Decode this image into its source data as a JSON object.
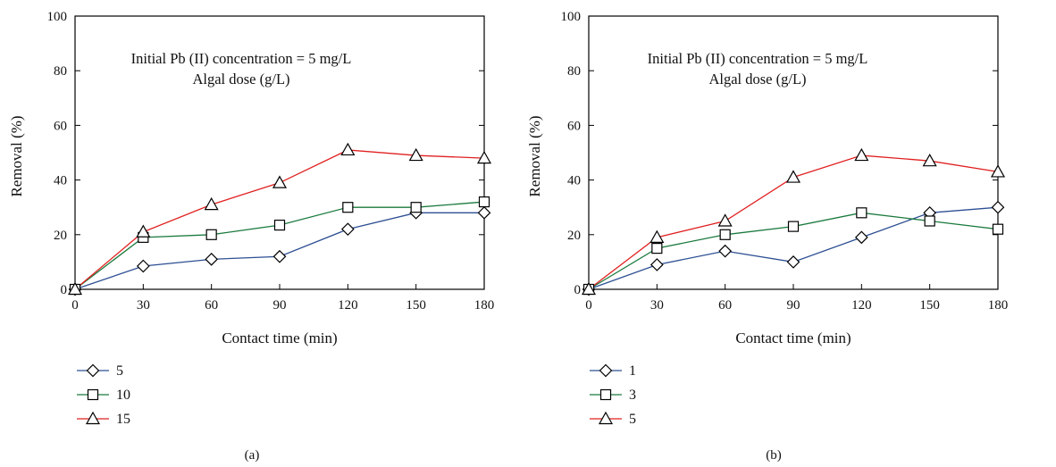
{
  "figure": {
    "colors": {
      "axis": "#000000",
      "marker_fill": "#ffffff",
      "marker_stroke": "#000000"
    }
  },
  "chart_data": [
    {
      "type": "line",
      "panel": "(a)",
      "annotation": [
        "Initial Pb (II) concentration = 5 mg/L",
        "Algal dose (g/L)"
      ],
      "xlabel": "Contact time (min)",
      "ylabel": "Removal (%)",
      "xlim": [
        0,
        180
      ],
      "ylim": [
        0,
        100
      ],
      "xticks": [
        0,
        30,
        60,
        90,
        120,
        150,
        180
      ],
      "yticks": [
        0,
        20,
        40,
        60,
        80,
        100
      ],
      "grid": false,
      "legend_position": "below-left",
      "x": [
        0,
        30,
        60,
        90,
        120,
        150,
        180
      ],
      "series": [
        {
          "name": "5",
          "marker": "diamond",
          "color": "#2d4f93",
          "values": [
            0,
            8.5,
            11,
            12,
            22,
            28,
            28
          ]
        },
        {
          "name": "10",
          "marker": "square",
          "color": "#1b7a3e",
          "values": [
            0,
            19,
            20,
            23.5,
            30,
            30,
            32
          ]
        },
        {
          "name": "15",
          "marker": "triangle",
          "color": "#e02020",
          "values": [
            0,
            21,
            31,
            39,
            51,
            49,
            48
          ]
        }
      ]
    },
    {
      "type": "line",
      "panel": "(b)",
      "annotation": [
        "Initial Pb (II) concentration = 5 mg/L",
        "Algal dose (g/L)"
      ],
      "xlabel": "Contact time (min)",
      "ylabel": "Removal (%)",
      "xlim": [
        0,
        180
      ],
      "ylim": [
        0,
        100
      ],
      "xticks": [
        0,
        30,
        60,
        90,
        120,
        150,
        180
      ],
      "yticks": [
        0,
        20,
        40,
        60,
        80,
        100
      ],
      "grid": false,
      "legend_position": "below-left",
      "x": [
        0,
        30,
        60,
        90,
        120,
        150,
        180
      ],
      "series": [
        {
          "name": "1",
          "marker": "diamond",
          "color": "#2d4f93",
          "values": [
            0,
            9,
            14,
            10,
            19,
            28,
            30
          ]
        },
        {
          "name": "3",
          "marker": "square",
          "color": "#1b7a3e",
          "values": [
            0,
            15,
            20,
            23,
            28,
            25,
            22
          ]
        },
        {
          "name": "5",
          "marker": "triangle",
          "color": "#e02020",
          "values": [
            0,
            19,
            25,
            41,
            49,
            47,
            43
          ]
        }
      ]
    }
  ]
}
